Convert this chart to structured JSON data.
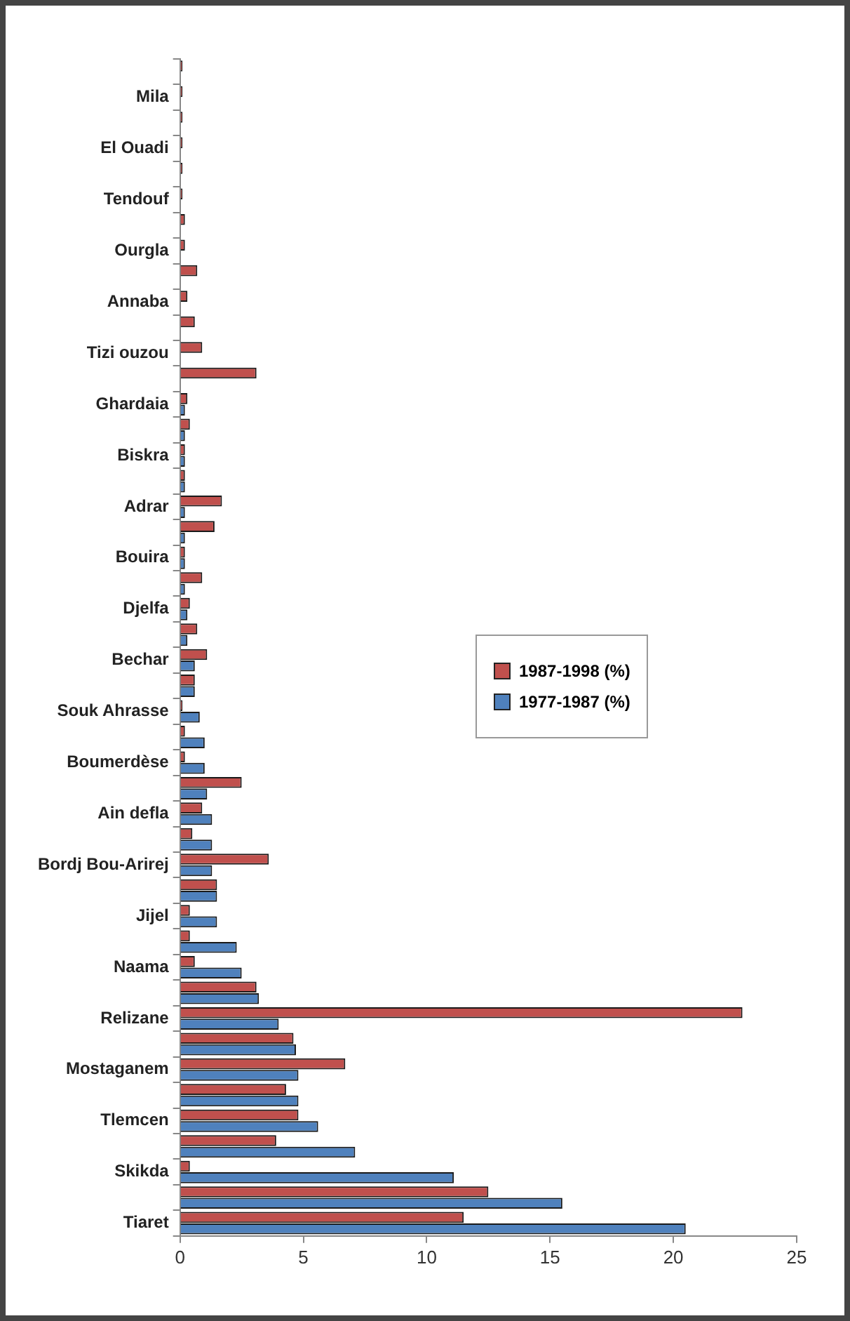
{
  "chart_data": {
    "type": "bar",
    "orientation": "horizontal",
    "categories": [
      null,
      "Mila",
      null,
      "El Ouadi",
      null,
      "Tendouf",
      null,
      "Ourgla",
      null,
      "Annaba",
      null,
      "Tizi ouzou",
      null,
      "Ghardaia",
      null,
      "Biskra",
      null,
      "Adrar",
      null,
      "Bouira",
      null,
      "Djelfa",
      null,
      "Bechar",
      null,
      "Souk Ahrasse",
      null,
      "Boumerdèse",
      null,
      "Ain defla",
      null,
      "Bordj Bou-Arirej",
      null,
      "Jijel",
      null,
      "Naama",
      null,
      "Relizane",
      null,
      "Mostaganem",
      null,
      "Tlemcen",
      null,
      "Skikda",
      null,
      "Tiaret"
    ],
    "series": [
      {
        "name": "1987-1998 (%)",
        "color": "#c0504d",
        "values": [
          0.1,
          0.1,
          0.1,
          0.1,
          0.1,
          0.1,
          0.2,
          0.2,
          0.7,
          0.3,
          0.6,
          0.9,
          3.1,
          0.3,
          0.4,
          0.2,
          0.2,
          1.7,
          1.4,
          0.2,
          0.9,
          0.4,
          0.7,
          1.1,
          0.6,
          0.1,
          0.2,
          0.2,
          2.5,
          0.9,
          0.5,
          3.6,
          1.5,
          0.4,
          0.4,
          0.6,
          3.1,
          22.8,
          4.6,
          6.7,
          4.3,
          4.8,
          3.9,
          0.4,
          12.5,
          11.5
        ]
      },
      {
        "name": "1977-1987 (%)",
        "color": "#4f81bd",
        "values": [
          0,
          0,
          0,
          0,
          0,
          0,
          0,
          0,
          0,
          0,
          0,
          0,
          0,
          0.2,
          0.2,
          0.2,
          0.2,
          0.2,
          0.2,
          0.2,
          0.2,
          0.3,
          0.3,
          0.6,
          0.6,
          0.8,
          1.0,
          1.0,
          1.1,
          1.3,
          1.3,
          1.3,
          1.5,
          1.5,
          2.3,
          2.5,
          3.2,
          4.0,
          4.7,
          4.8,
          4.8,
          5.6,
          7.1,
          11.1,
          15.5,
          20.5
        ]
      }
    ],
    "xlim": [
      0,
      25
    ],
    "xticks": [
      0,
      5,
      10,
      15,
      20,
      25
    ],
    "legend": "right",
    "grid": false
  }
}
